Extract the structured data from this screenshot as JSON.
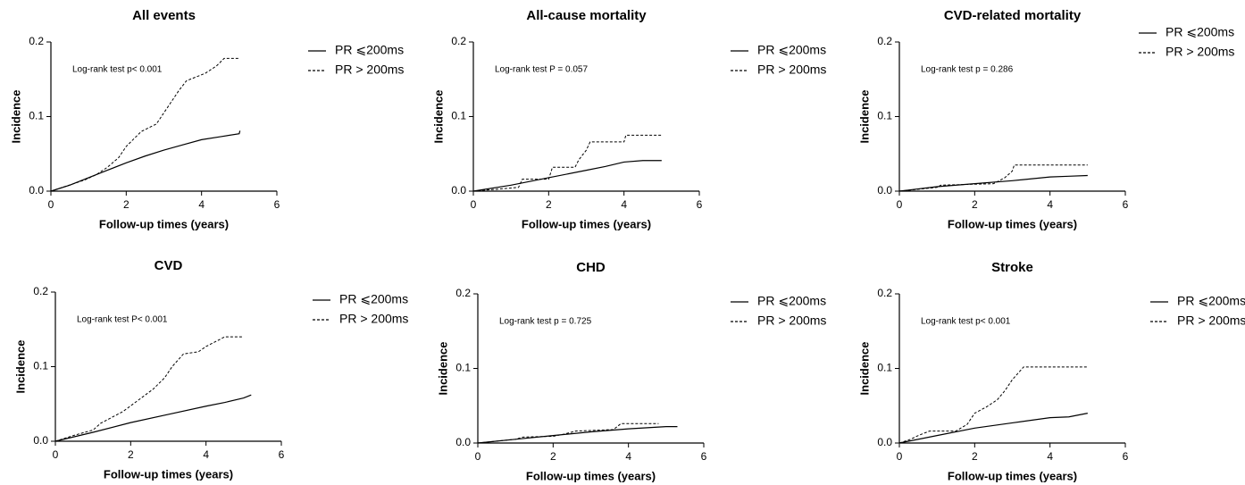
{
  "chart_data": [
    {
      "type": "line",
      "title": "All events",
      "annotation": "Log-rank test p< 0.001",
      "x_label": "Follow-up times (years)",
      "y_label": "Incidence",
      "xlim": [
        0,
        6
      ],
      "ylim": [
        0,
        0.2
      ],
      "xticks": [
        0,
        2,
        4,
        6
      ],
      "yticks": [
        {
          "value": 0,
          "label": "0.0"
        },
        0.1,
        0.2
      ],
      "series": [
        {
          "name": "PR ⩽200ms",
          "color": "#000000",
          "line_style": "solid",
          "x": [
            0,
            0.5,
            1,
            1.5,
            2,
            2.5,
            3,
            3.5,
            4,
            4.5,
            5,
            5.02
          ],
          "values": [
            0,
            0.008,
            0.018,
            0.028,
            0.038,
            0.047,
            0.055,
            0.062,
            0.069,
            0.073,
            0.077,
            0.081
          ]
        },
        {
          "name": "PR > 200ms",
          "color": "#000000",
          "line_style": "dashed",
          "x": [
            0,
            0.3,
            0.6,
            0.9,
            1.2,
            1.5,
            1.8,
            2,
            2.2,
            2.4,
            2.8,
            3,
            3.2,
            3.4,
            3.6,
            4.1,
            4.4,
            4.6,
            5
          ],
          "values": [
            0,
            0.005,
            0.01,
            0.015,
            0.022,
            0.032,
            0.045,
            0.06,
            0.07,
            0.08,
            0.09,
            0.105,
            0.12,
            0.135,
            0.148,
            0.158,
            0.168,
            0.178,
            0.178
          ]
        }
      ]
    },
    {
      "type": "line",
      "title": "All-cause mortality",
      "annotation": "Log-rank test P = 0.057",
      "x_label": "Follow-up times (years)",
      "y_label": "Incidence",
      "xlim": [
        0,
        6
      ],
      "ylim": [
        0,
        0.2
      ],
      "xticks": [
        0,
        2,
        4,
        6
      ],
      "yticks": [
        {
          "value": 0,
          "label": "0.0"
        },
        0.1,
        0.2
      ],
      "series": [
        {
          "name": "PR ⩽200ms",
          "color": "#000000",
          "line_style": "solid",
          "x": [
            0,
            1,
            2,
            3,
            3.5,
            4,
            4.5,
            5
          ],
          "values": [
            0,
            0.008,
            0.018,
            0.028,
            0.033,
            0.039,
            0.041,
            0.041
          ]
        },
        {
          "name": "PR > 200ms",
          "color": "#000000",
          "line_style": "dashed",
          "x": [
            0,
            1.2,
            1.3,
            2,
            2.1,
            2.7,
            2.8,
            3,
            3.1,
            4,
            4.05,
            5
          ],
          "values": [
            0,
            0.005,
            0.016,
            0.016,
            0.032,
            0.032,
            0.042,
            0.055,
            0.066,
            0.066,
            0.075,
            0.075
          ]
        }
      ]
    },
    {
      "type": "line",
      "title": "CVD-related mortality",
      "annotation": "Log-rank test p = 0.286",
      "x_label": "Follow-up times (years)",
      "y_label": "Incidence",
      "xlim": [
        0,
        6
      ],
      "ylim": [
        0,
        0.2
      ],
      "xticks": [
        0,
        2,
        4,
        6
      ],
      "yticks": [
        {
          "value": 0,
          "label": "0.0"
        },
        0.1,
        0.2
      ],
      "series": [
        {
          "name": "PR ⩽200ms",
          "color": "#000000",
          "line_style": "solid",
          "x": [
            0,
            1,
            2,
            3,
            4,
            4.5,
            5
          ],
          "values": [
            0,
            0.006,
            0.01,
            0.014,
            0.019,
            0.02,
            0.021
          ]
        },
        {
          "name": "PR > 200ms",
          "color": "#000000",
          "line_style": "dashed",
          "x": [
            0,
            1,
            1.1,
            2.5,
            2.8,
            3,
            3.05,
            5
          ],
          "values": [
            0,
            0.005,
            0.008,
            0.01,
            0.018,
            0.027,
            0.035,
            0.035
          ]
        }
      ]
    },
    {
      "type": "line",
      "title": "CVD",
      "annotation": "Log-rank test P< 0.001",
      "x_label": "Follow-up times (years)",
      "y_label": "Incidence",
      "xlim": [
        0,
        6
      ],
      "ylim": [
        0,
        0.2
      ],
      "xticks": [
        0,
        2,
        4,
        6
      ],
      "yticks": [
        {
          "value": 0,
          "label": "0.0"
        },
        0.1,
        0.2
      ],
      "series": [
        {
          "name": "PR ⩽200ms",
          "color": "#000000",
          "line_style": "solid",
          "x": [
            0,
            1,
            2,
            3,
            4,
            4.5,
            5,
            5.2
          ],
          "values": [
            0,
            0.012,
            0.025,
            0.036,
            0.047,
            0.052,
            0.058,
            0.062
          ]
        },
        {
          "name": "PR > 200ms",
          "color": "#000000",
          "line_style": "dashed",
          "x": [
            0,
            0.5,
            1,
            1.2,
            1.8,
            2.2,
            2.6,
            2.9,
            3.1,
            3.4,
            3.8,
            4,
            4.5,
            5
          ],
          "values": [
            0,
            0.008,
            0.015,
            0.024,
            0.04,
            0.055,
            0.07,
            0.085,
            0.1,
            0.117,
            0.12,
            0.127,
            0.14,
            0.14
          ]
        }
      ]
    },
    {
      "type": "line",
      "title": "CHD",
      "annotation": "Log-rank test p = 0.725",
      "x_label": "Follow-up times (years)",
      "y_label": "Incidence",
      "xlim": [
        0,
        6
      ],
      "ylim": [
        0,
        0.2
      ],
      "xticks": [
        0,
        2,
        4,
        6
      ],
      "yticks": [
        {
          "value": 0,
          "label": "0.0"
        },
        0.1,
        0.2
      ],
      "series": [
        {
          "name": "PR ⩽200ms",
          "color": "#000000",
          "line_style": "solid",
          "x": [
            0,
            1,
            2,
            3,
            4,
            5,
            5.3
          ],
          "values": [
            0,
            0.005,
            0.01,
            0.015,
            0.019,
            0.022,
            0.022
          ]
        },
        {
          "name": "PR > 200ms",
          "color": "#000000",
          "line_style": "dashed",
          "x": [
            0,
            1,
            1.2,
            2,
            2.3,
            2.6,
            3.6,
            3.8,
            4.8
          ],
          "values": [
            0,
            0.005,
            0.008,
            0.009,
            0.012,
            0.016,
            0.018,
            0.026,
            0.026
          ]
        }
      ]
    },
    {
      "type": "line",
      "title": "Stroke",
      "annotation": "Log-rank test p< 0.001",
      "x_label": "Follow-up times (years)",
      "y_label": "Incidence",
      "xlim": [
        0,
        6
      ],
      "ylim": [
        0,
        0.2
      ],
      "xticks": [
        0,
        2,
        4,
        6
      ],
      "yticks": [
        {
          "value": 0,
          "label": "0.0"
        },
        0.1,
        0.2
      ],
      "series": [
        {
          "name": "PR ⩽200ms",
          "color": "#000000",
          "line_style": "solid",
          "x": [
            0,
            1,
            2,
            3,
            4,
            4.5,
            5
          ],
          "values": [
            0,
            0.01,
            0.02,
            0.027,
            0.034,
            0.035,
            0.04
          ]
        },
        {
          "name": "PR > 200ms",
          "color": "#000000",
          "line_style": "dashed",
          "x": [
            0,
            0.3,
            0.5,
            0.8,
            1.5,
            1.8,
            2,
            2.3,
            2.6,
            2.8,
            3,
            3.3,
            5
          ],
          "values": [
            0,
            0.005,
            0.01,
            0.016,
            0.016,
            0.025,
            0.04,
            0.048,
            0.058,
            0.07,
            0.085,
            0.102,
            0.102
          ]
        }
      ]
    }
  ]
}
